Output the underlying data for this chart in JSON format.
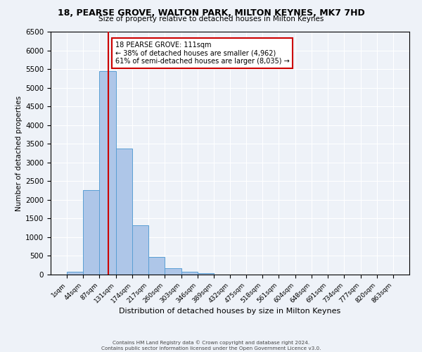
{
  "title": "18, PEARSE GROVE, WALTON PARK, MILTON KEYNES, MK7 7HD",
  "subtitle": "Size of property relative to detached houses in Milton Keynes",
  "xlabel": "Distribution of detached houses by size in Milton Keynes",
  "ylabel": "Number of detached properties",
  "bin_edges": [
    1,
    44,
    87,
    131,
    174,
    217,
    260,
    303,
    346,
    389,
    432,
    475,
    518,
    561,
    604,
    648,
    691,
    734,
    777,
    820,
    863
  ],
  "bin_labels": [
    "1sqm",
    "44sqm",
    "87sqm",
    "131sqm",
    "174sqm",
    "217sqm",
    "260sqm",
    "303sqm",
    "346sqm",
    "389sqm",
    "432sqm",
    "475sqm",
    "518sqm",
    "561sqm",
    "604sqm",
    "648sqm",
    "691sqm",
    "734sqm",
    "777sqm",
    "820sqm",
    "863sqm"
  ],
  "counts": [
    70,
    2270,
    5450,
    3380,
    1310,
    470,
    170,
    75,
    30,
    0,
    0,
    0,
    0,
    0,
    0,
    0,
    0,
    0,
    0,
    0
  ],
  "bar_color": "#aec6e8",
  "bar_edge_color": "#5a9fd4",
  "property_size": 111,
  "vline_color": "#cc0000",
  "annotation_text": "18 PEARSE GROVE: 111sqm\n← 38% of detached houses are smaller (4,962)\n61% of semi-detached houses are larger (8,035) →",
  "annotation_box_color": "#ffffff",
  "annotation_box_edge": "#cc0000",
  "ylim": [
    0,
    6500
  ],
  "footer_line1": "Contains HM Land Registry data © Crown copyright and database right 2024.",
  "footer_line2": "Contains public sector information licensed under the Open Government Licence v3.0.",
  "background_color": "#eef2f8",
  "grid_color": "#ffffff"
}
